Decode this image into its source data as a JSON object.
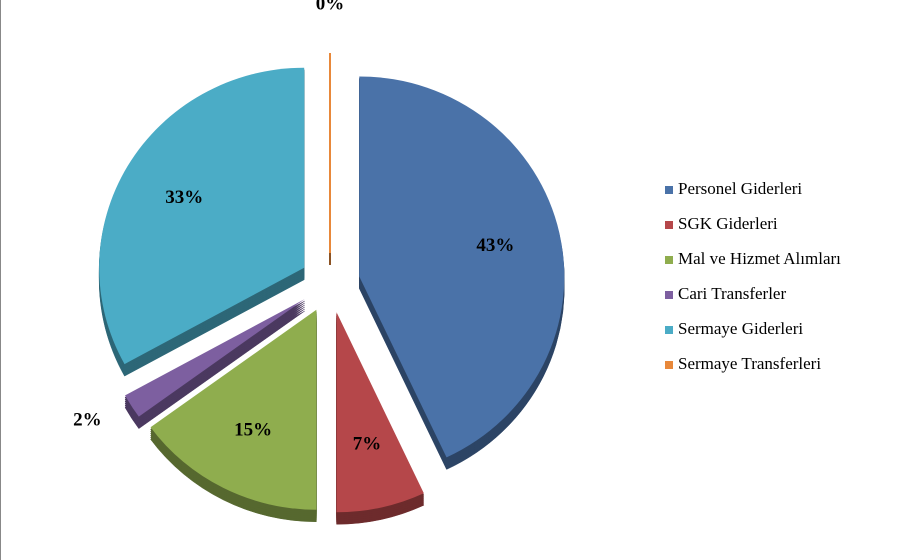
{
  "chart_data": {
    "type": "pie",
    "categories": [
      "Personel Giderleri",
      "SGK Giderleri",
      "Mal ve Hizmet Alımları",
      "Cari Transferler",
      "Sermaye Giderleri",
      "Sermaye Transferleri"
    ],
    "values": [
      43,
      7,
      15,
      2,
      33,
      0
    ],
    "value_labels": [
      "43%",
      "7%",
      "15%",
      "2%",
      "33%",
      "0%"
    ],
    "colors": [
      "#4a72a8",
      "#b5474a",
      "#8fad4e",
      "#7d5fa0",
      "#4bacc6",
      "#e8883a"
    ],
    "legend": "right"
  }
}
